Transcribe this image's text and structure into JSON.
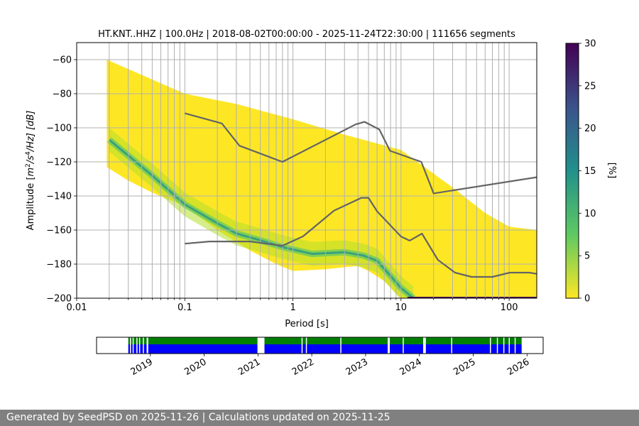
{
  "chart_data": [
    {
      "type": "heatmap",
      "title": "HT.KNT..HHZ | 100.0Hz | 2018-08-02T00:00:00 - 2025-11-24T22:30:00 | 111656 segments",
      "xlabel": "Period [s]",
      "ylabel": "Amplitude [m²/s⁴/Hz] [dB]",
      "ylabel_parts": {
        "prefix": "Amplitude [",
        "m": "m",
        "exp1": "2",
        "mid": "/s",
        "exp2": "4",
        "suffix": "/Hz] [dB]"
      },
      "x_scale": "log",
      "xlim": [
        0.01,
        180
      ],
      "ylim": [
        -200,
        -50
      ],
      "x_ticks": [
        0.01,
        0.1,
        1,
        10,
        100
      ],
      "x_tick_labels": [
        "0.01",
        "0.1",
        "1",
        "10",
        "100"
      ],
      "y_ticks": [
        -200,
        -180,
        -160,
        -140,
        -120,
        -100,
        -80,
        -60
      ],
      "y_tick_labels": [
        "−200",
        "−180",
        "−160",
        "−140",
        "−120",
        "−100",
        "−80",
        "−60"
      ],
      "grid": true,
      "colorbar": {
        "label": "[%]",
        "range": [
          0,
          30
        ],
        "ticks": [
          0,
          5,
          10,
          15,
          20,
          25,
          30
        ],
        "tick_labels": [
          "0",
          "5",
          "10",
          "15",
          "20",
          "25",
          "30"
        ],
        "colormap": "viridis"
      },
      "mode_curve": {
        "name": "mode",
        "points": [
          [
            0.02,
            -107
          ],
          [
            0.05,
            -128
          ],
          [
            0.1,
            -145
          ],
          [
            0.2,
            -156
          ],
          [
            0.3,
            -162
          ],
          [
            0.5,
            -166
          ],
          [
            0.8,
            -170
          ],
          [
            1.5,
            -174
          ],
          [
            3,
            -173
          ],
          [
            4.5,
            -175
          ],
          [
            6,
            -178
          ],
          [
            8,
            -187
          ],
          [
            10,
            -194
          ],
          [
            13,
            -200
          ]
        ]
      },
      "noise_models": [
        {
          "name": "NHNM",
          "points": [
            [
              0.1,
              -91.5
            ],
            [
              0.22,
              -97.4
            ],
            [
              0.32,
              -110.5
            ],
            [
              0.8,
              -120
            ],
            [
              3.8,
              -98
            ],
            [
              4.6,
              -96.5
            ],
            [
              6.3,
              -101
            ],
            [
              7.9,
              -113.5
            ],
            [
              15.4,
              -120
            ],
            [
              20,
              -138.5
            ],
            [
              180,
              -129
            ]
          ]
        },
        {
          "name": "NLNM",
          "points": [
            [
              0.1,
              -168
            ],
            [
              0.17,
              -166.7
            ],
            [
              0.4,
              -166.7
            ],
            [
              0.8,
              -169.2
            ],
            [
              1.24,
              -163.7
            ],
            [
              2.4,
              -148.6
            ],
            [
              4.3,
              -141.1
            ],
            [
              5,
              -141.1
            ],
            [
              6,
              -149
            ],
            [
              10,
              -163.8
            ],
            [
              12,
              -166.2
            ],
            [
              15.6,
              -162.1
            ],
            [
              21.9,
              -177.5
            ],
            [
              31.6,
              -185
            ],
            [
              45,
              -187.5
            ],
            [
              70,
              -187.5
            ],
            [
              101,
              -185
            ],
            [
              154,
              -185
            ],
            [
              180,
              -185.7
            ]
          ]
        }
      ],
      "envelope": {
        "top": [
          [
            0.019,
            -60
          ],
          [
            0.1,
            -80
          ],
          [
            0.3,
            -86
          ],
          [
            1,
            -95
          ],
          [
            3,
            -104
          ],
          [
            10,
            -113
          ],
          [
            30,
            -135
          ],
          [
            60,
            -150
          ],
          [
            100,
            -158
          ],
          [
            180,
            -160
          ]
        ],
        "bottom": [
          [
            0.019,
            -123
          ],
          [
            0.03,
            -131
          ],
          [
            0.05,
            -138
          ],
          [
            0.1,
            -146
          ],
          [
            0.2,
            -160
          ],
          [
            0.4,
            -172
          ],
          [
            0.7,
            -180
          ],
          [
            1,
            -184
          ],
          [
            2,
            -183
          ],
          [
            4,
            -181
          ],
          [
            5,
            -184
          ],
          [
            7,
            -190
          ],
          [
            10,
            -200
          ],
          [
            180,
            -200
          ]
        ]
      }
    },
    {
      "type": "timeline",
      "x_tick_labels": [
        "2019",
        "2020",
        "2021",
        "2022",
        "2023",
        "2024",
        "2025",
        "2026"
      ],
      "x_ticks": [
        2019,
        2020,
        2021,
        2022,
        2023,
        2024,
        2025,
        2026
      ],
      "xlim": [
        2018.0,
        2026.3
      ],
      "data_start": 2018.59,
      "data_end": 2025.9,
      "colors": {
        "top": "#008000",
        "bottom": "#0000ff"
      },
      "gaps": [
        [
          2018.62,
          2018.63
        ],
        [
          2018.67,
          2018.69
        ],
        [
          2018.74,
          2018.75
        ],
        [
          2018.79,
          2018.8
        ],
        [
          2018.86,
          2018.88
        ],
        [
          2018.93,
          2018.96
        ],
        [
          2020.99,
          2021.12
        ],
        [
          2021.81,
          2021.82
        ],
        [
          2021.89,
          2021.9
        ],
        [
          2022.53,
          2022.54
        ],
        [
          2023.41,
          2023.45
        ],
        [
          2023.69,
          2023.71
        ],
        [
          2024.07,
          2024.12
        ],
        [
          2024.59,
          2024.61
        ],
        [
          2025.31,
          2025.33
        ],
        [
          2025.44,
          2025.46
        ],
        [
          2025.56,
          2025.57
        ],
        [
          2025.66,
          2025.68
        ],
        [
          2025.77,
          2025.78
        ]
      ]
    }
  ],
  "footer": {
    "text": "Generated by SeedPSD on 2025-11-26 | Calculations updated on 2025-11-25"
  },
  "colors": {
    "grid": "#b0b0b0",
    "model_line": "#646464",
    "footer_bg": "#808080"
  }
}
